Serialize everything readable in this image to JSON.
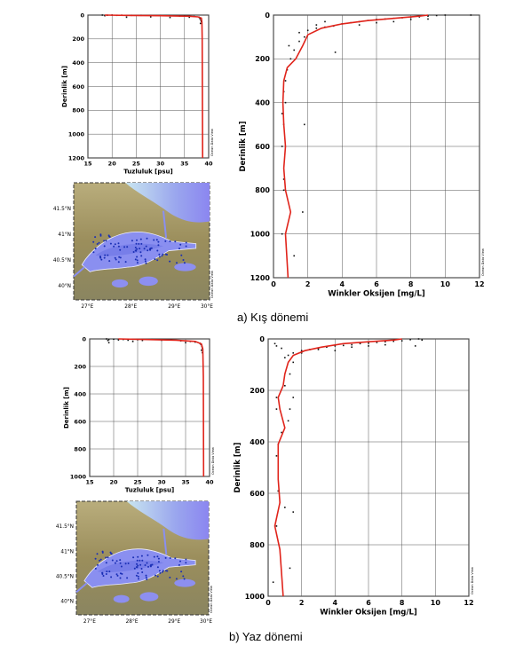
{
  "colors": {
    "profile": "#e0241b",
    "points": "#111111",
    "grid": "#000000",
    "map_sea": "#8a8ff0",
    "map_land": "#a89a6a",
    "map_station": "#1a2fb5"
  },
  "captions": {
    "a": "a)   Kış dönemi",
    "b": "b)   Yaz dönemi"
  },
  "watermark": "Ocean Data View",
  "map_labels": {
    "lat": [
      "41.5°N",
      "41°N",
      "40.5°N",
      "40°N"
    ],
    "lon": [
      "27°E",
      "28°E",
      "29°E",
      "30°E"
    ]
  },
  "chart_data": [
    {
      "type": "scatter",
      "panel": "a-salinity",
      "xlabel": "Tuzluluk [psu]",
      "ylabel": "Derinlik [m]",
      "xlim": [
        15,
        40
      ],
      "ylim": [
        0,
        1200
      ],
      "xticks": [
        "15",
        "20",
        "25",
        "30",
        "35",
        "40"
      ],
      "yticks": [
        "0",
        "200",
        "400",
        "600",
        "800",
        "1000",
        "1200"
      ],
      "grid": true,
      "profile": [
        [
          18.5,
          0
        ],
        [
          24,
          3
        ],
        [
          30,
          5
        ],
        [
          36,
          10
        ],
        [
          37.8,
          15
        ],
        [
          38.5,
          25
        ],
        [
          38.6,
          60
        ],
        [
          38.65,
          200
        ],
        [
          38.7,
          600
        ],
        [
          38.75,
          1200
        ]
      ],
      "points": [
        [
          18,
          0
        ],
        [
          19,
          1
        ],
        [
          20,
          0
        ],
        [
          21,
          2
        ],
        [
          22,
          1
        ],
        [
          23,
          3
        ],
        [
          24,
          2
        ],
        [
          26,
          2
        ],
        [
          28,
          4
        ],
        [
          30,
          3
        ],
        [
          32,
          6
        ],
        [
          34,
          8
        ],
        [
          35,
          6
        ],
        [
          36,
          10
        ],
        [
          37,
          12
        ],
        [
          38,
          18
        ],
        [
          38.2,
          30
        ],
        [
          38.4,
          45
        ],
        [
          38.5,
          55
        ],
        [
          23,
          18
        ],
        [
          28,
          15
        ],
        [
          32,
          20
        ],
        [
          36,
          18
        ],
        [
          38.3,
          70
        ],
        [
          18.5,
          5
        ]
      ]
    },
    {
      "type": "scatter",
      "panel": "a-oxygen",
      "xlabel": "Winkler Oksijen [mg/L]",
      "ylabel": "Derinlik [m]",
      "xlim": [
        0,
        12
      ],
      "ylim": [
        0,
        1200
      ],
      "xticks": [
        "0",
        "2",
        "4",
        "6",
        "8",
        "10",
        "12"
      ],
      "yticks": [
        "0",
        "200",
        "400",
        "600",
        "800",
        "1000",
        "1200"
      ],
      "grid": true,
      "profile": [
        [
          9,
          0
        ],
        [
          8.5,
          5
        ],
        [
          7,
          15
        ],
        [
          5.5,
          25
        ],
        [
          4,
          40
        ],
        [
          2.8,
          60
        ],
        [
          2,
          90
        ],
        [
          1.7,
          140
        ],
        [
          1.3,
          200
        ],
        [
          0.8,
          240
        ],
        [
          0.6,
          300
        ],
        [
          0.55,
          400
        ],
        [
          0.6,
          500
        ],
        [
          0.7,
          600
        ],
        [
          0.6,
          700
        ],
        [
          0.7,
          800
        ],
        [
          1.0,
          900
        ],
        [
          0.7,
          1000
        ],
        [
          0.85,
          1200
        ]
      ],
      "points": [
        [
          10,
          0
        ],
        [
          9.5,
          2
        ],
        [
          11.5,
          0
        ],
        [
          9,
          5
        ],
        [
          8.5,
          8
        ],
        [
          8,
          10
        ],
        [
          7.5,
          12
        ],
        [
          7,
          15
        ],
        [
          6.5,
          18
        ],
        [
          6,
          20
        ],
        [
          5.5,
          25
        ],
        [
          5,
          30
        ],
        [
          4.5,
          35
        ],
        [
          4,
          40
        ],
        [
          3.5,
          50
        ],
        [
          3,
          55
        ],
        [
          2.5,
          60
        ],
        [
          2,
          70
        ],
        [
          1.5,
          80
        ],
        [
          8,
          20
        ],
        [
          9,
          18
        ],
        [
          7,
          30
        ],
        [
          6,
          35
        ],
        [
          5,
          45
        ],
        [
          3,
          30
        ],
        [
          2.5,
          45
        ],
        [
          1.8,
          100
        ],
        [
          1.5,
          120
        ],
        [
          1.2,
          160
        ],
        [
          1.0,
          200
        ],
        [
          0.8,
          250
        ],
        [
          0.7,
          300
        ],
        [
          0.6,
          350
        ],
        [
          0.7,
          400
        ],
        [
          0.5,
          450
        ],
        [
          1.8,
          500
        ],
        [
          0.6,
          500
        ],
        [
          0.5,
          600
        ],
        [
          0.6,
          750
        ],
        [
          0.6,
          800
        ],
        [
          1.7,
          900
        ],
        [
          0.5,
          1000
        ],
        [
          1.2,
          1100
        ],
        [
          3.6,
          170
        ],
        [
          0.9,
          140
        ]
      ]
    },
    {
      "type": "scatter",
      "panel": "b-salinity",
      "xlabel": "Tuzluluk [psu]",
      "ylabel": "Derinlik [m]",
      "xlim": [
        15,
        40
      ],
      "ylim": [
        0,
        1100
      ],
      "xticks": [
        "15",
        "20",
        "25",
        "30",
        "35",
        "40"
      ],
      "yticks": [
        "0",
        "200",
        "400",
        "600",
        "800",
        "1000"
      ],
      "grid": true,
      "profile": [
        [
          21,
          0
        ],
        [
          27,
          5
        ],
        [
          33,
          10
        ],
        [
          37,
          20
        ],
        [
          38.3,
          40
        ],
        [
          38.6,
          80
        ],
        [
          38.7,
          300
        ],
        [
          38.75,
          1100
        ]
      ],
      "points": [
        [
          18.5,
          0
        ],
        [
          19,
          5
        ],
        [
          20,
          2
        ],
        [
          21,
          8
        ],
        [
          22,
          4
        ],
        [
          23,
          10
        ],
        [
          24,
          3
        ],
        [
          25,
          6
        ],
        [
          26,
          12
        ],
        [
          28,
          5
        ],
        [
          30,
          10
        ],
        [
          32,
          8
        ],
        [
          34,
          15
        ],
        [
          36,
          20
        ],
        [
          37,
          25
        ],
        [
          38,
          35
        ],
        [
          38.2,
          45
        ],
        [
          38.4,
          60
        ],
        [
          38.5,
          75
        ],
        [
          19,
          30
        ],
        [
          24,
          20
        ],
        [
          35,
          30
        ],
        [
          38.3,
          90
        ],
        [
          38.5,
          110
        ],
        [
          18.8,
          12
        ]
      ]
    },
    {
      "type": "scatter",
      "panel": "b-oxygen",
      "xlabel": "Winkler Oksijen [mg/L]",
      "ylabel": "Derinlik [m]",
      "xlim": [
        0,
        12
      ],
      "ylim": [
        0,
        1100
      ],
      "xticks": [
        "0",
        "2",
        "4",
        "6",
        "8",
        "10",
        "12"
      ],
      "yticks": [
        "0",
        "200",
        "400",
        "600",
        "800",
        "1000"
      ],
      "grid": true,
      "profile": [
        [
          8,
          0
        ],
        [
          7.5,
          5
        ],
        [
          6,
          12
        ],
        [
          4.5,
          20
        ],
        [
          3.2,
          35
        ],
        [
          2.2,
          50
        ],
        [
          1.5,
          70
        ],
        [
          1.2,
          100
        ],
        [
          1.0,
          150
        ],
        [
          0.9,
          200
        ],
        [
          0.6,
          250
        ],
        [
          0.7,
          300
        ],
        [
          1.0,
          380
        ],
        [
          0.6,
          450
        ],
        [
          0.6,
          600
        ],
        [
          0.7,
          700
        ],
        [
          0.4,
          800
        ],
        [
          0.7,
          900
        ],
        [
          0.9,
          1100
        ]
      ],
      "points": [
        [
          9,
          0
        ],
        [
          8.5,
          3
        ],
        [
          9.2,
          5
        ],
        [
          8,
          8
        ],
        [
          7.5,
          10
        ],
        [
          7,
          12
        ],
        [
          6.5,
          15
        ],
        [
          6,
          18
        ],
        [
          5.5,
          20
        ],
        [
          5,
          25
        ],
        [
          4.5,
          28
        ],
        [
          4,
          30
        ],
        [
          3.5,
          35
        ],
        [
          3,
          40
        ],
        [
          2.5,
          45
        ],
        [
          2,
          50
        ],
        [
          1.5,
          60
        ],
        [
          1.2,
          70
        ],
        [
          1.0,
          80
        ],
        [
          0.8,
          40
        ],
        [
          0.5,
          30
        ],
        [
          0.4,
          20
        ],
        [
          7,
          25
        ],
        [
          6,
          30
        ],
        [
          5,
          35
        ],
        [
          4,
          50
        ],
        [
          3,
          45
        ],
        [
          2,
          60
        ],
        [
          1.5,
          100
        ],
        [
          1.3,
          150
        ],
        [
          1.0,
          200
        ],
        [
          0.5,
          250
        ],
        [
          0.5,
          300
        ],
        [
          1.5,
          250
        ],
        [
          1.3,
          300
        ],
        [
          1.2,
          350
        ],
        [
          0.8,
          400
        ],
        [
          0.6,
          450
        ],
        [
          0.5,
          500
        ],
        [
          0.6,
          650
        ],
        [
          1.0,
          720
        ],
        [
          1.5,
          740
        ],
        [
          0.5,
          800
        ],
        [
          1.3,
          980
        ],
        [
          0.3,
          1040
        ],
        [
          8.8,
          30
        ]
      ]
    }
  ]
}
